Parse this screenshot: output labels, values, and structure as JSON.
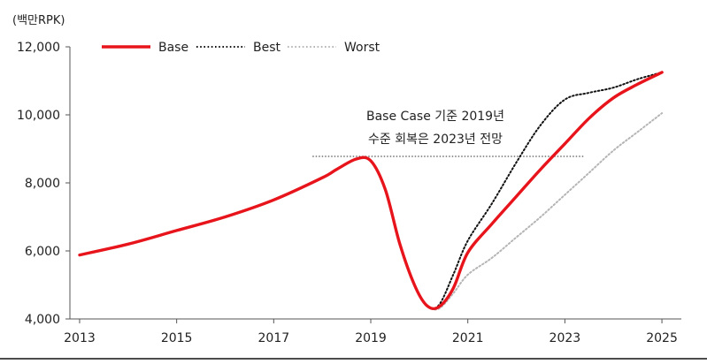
{
  "chart_data": {
    "type": "line",
    "unit_label": "(백만RPK)",
    "x_ticks": [
      2013,
      2015,
      2017,
      2019,
      2021,
      2023,
      2025
    ],
    "xlim": [
      2012.8,
      2025.4
    ],
    "y_ticks": [
      4000,
      6000,
      8000,
      10000,
      12000
    ],
    "y_tick_labels": [
      "4,000",
      "6,000",
      "8,000",
      "10,000",
      "12,000"
    ],
    "ylim": [
      4000,
      12000
    ],
    "grid": false,
    "legend_position": "top-left",
    "series": [
      {
        "name": "Base",
        "color": "#e8141b",
        "style": "solid",
        "points": [
          [
            2013,
            5880
          ],
          [
            2014,
            6200
          ],
          [
            2015,
            6600
          ],
          [
            2016,
            7000
          ],
          [
            2017,
            7500
          ],
          [
            2018,
            8150
          ],
          [
            2018.3,
            8400
          ],
          [
            2018.7,
            8700
          ],
          [
            2019,
            8650
          ],
          [
            2019.3,
            7800
          ],
          [
            2019.6,
            6200
          ],
          [
            2019.9,
            5000
          ],
          [
            2020.15,
            4400
          ],
          [
            2020.4,
            4350
          ],
          [
            2020.7,
            4900
          ],
          [
            2021,
            5950
          ],
          [
            2021.5,
            6800
          ],
          [
            2022,
            7600
          ],
          [
            2022.5,
            8400
          ],
          [
            2023,
            9150
          ],
          [
            2023.5,
            9900
          ],
          [
            2024,
            10500
          ],
          [
            2024.5,
            10900
          ],
          [
            2025,
            11250
          ]
        ]
      },
      {
        "name": "Best",
        "color": "#111111",
        "style": "dotted",
        "points": [
          [
            2013,
            5880
          ],
          [
            2014,
            6200
          ],
          [
            2015,
            6600
          ],
          [
            2016,
            7000
          ],
          [
            2017,
            7500
          ],
          [
            2018,
            8150
          ],
          [
            2018.3,
            8400
          ],
          [
            2018.7,
            8700
          ],
          [
            2019,
            8650
          ],
          [
            2019.3,
            7800
          ],
          [
            2019.6,
            6200
          ],
          [
            2019.9,
            5000
          ],
          [
            2020.15,
            4400
          ],
          [
            2020.4,
            4400
          ],
          [
            2020.7,
            5300
          ],
          [
            2021,
            6300
          ],
          [
            2021.5,
            7400
          ],
          [
            2022,
            8600
          ],
          [
            2022.5,
            9700
          ],
          [
            2023,
            10450
          ],
          [
            2023.5,
            10650
          ],
          [
            2024,
            10800
          ],
          [
            2024.5,
            11050
          ],
          [
            2025,
            11250
          ]
        ]
      },
      {
        "name": "Worst",
        "color": "#b5b5b5",
        "style": "dotted",
        "points": [
          [
            2013,
            5880
          ],
          [
            2014,
            6200
          ],
          [
            2015,
            6600
          ],
          [
            2016,
            7000
          ],
          [
            2017,
            7500
          ],
          [
            2018,
            8150
          ],
          [
            2018.3,
            8400
          ],
          [
            2018.7,
            8700
          ],
          [
            2019,
            8650
          ],
          [
            2019.3,
            7800
          ],
          [
            2019.6,
            6200
          ],
          [
            2019.9,
            5000
          ],
          [
            2020.15,
            4400
          ],
          [
            2020.4,
            4300
          ],
          [
            2020.7,
            4750
          ],
          [
            2021,
            5300
          ],
          [
            2021.5,
            5800
          ],
          [
            2022,
            6400
          ],
          [
            2022.5,
            7000
          ],
          [
            2023,
            7650
          ],
          [
            2023.5,
            8300
          ],
          [
            2024,
            8950
          ],
          [
            2024.5,
            9500
          ],
          [
            2025,
            10050
          ]
        ]
      }
    ],
    "reference_line": {
      "y": 8780,
      "x_from": 2017.8,
      "x_to": 2023.4
    },
    "annotation": [
      "Base Case 기준 2019년",
      "수준 회복은 2023년 전망"
    ]
  }
}
